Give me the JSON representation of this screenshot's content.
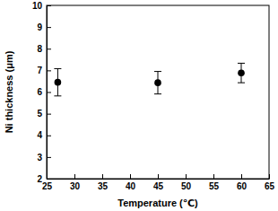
{
  "chart_data": {
    "type": "scatter",
    "x_label": "Temperature (℃)",
    "y_label": "Ni thickness (μm)",
    "x": [
      27,
      45,
      60
    ],
    "series": [
      {
        "color": "#000000",
        "marker": "circle",
        "values": [
          6.45,
          6.43,
          6.88
        ],
        "errors": [
          0.63,
          0.52,
          0.45
        ]
      }
    ],
    "xlim": [
      25,
      65
    ],
    "xticks": [
      25,
      30,
      35,
      40,
      45,
      50,
      55,
      60,
      65
    ],
    "ylim": [
      2,
      10
    ],
    "yticks": [
      2,
      3,
      4,
      5,
      6,
      7,
      8,
      9,
      10
    ],
    "grid": false
  }
}
